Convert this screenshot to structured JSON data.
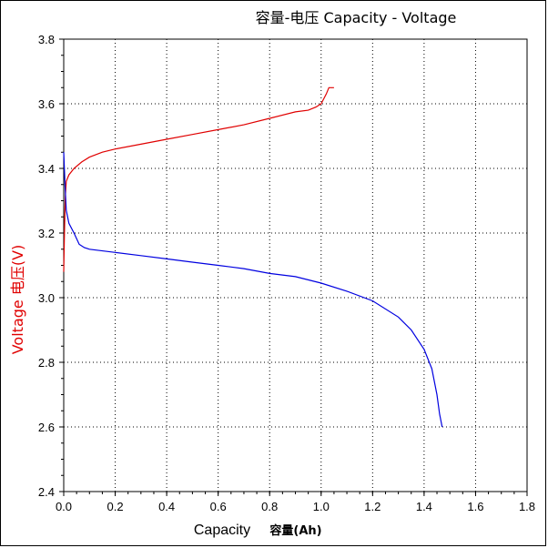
{
  "chart_data": {
    "type": "line",
    "title": "容量-电压  Capacity - Voltage",
    "xlabel": "Capacity",
    "xlabel_cn": "容量(Ah)",
    "ylabel": "Voltage  电压(V)",
    "xlim": [
      0.0,
      1.8
    ],
    "ylim": [
      2.4,
      3.8
    ],
    "xticks": [
      "0.0",
      "0.2",
      "0.4",
      "0.6",
      "0.8",
      "1.0",
      "1.2",
      "1.4",
      "1.6",
      "1.8"
    ],
    "yticks": [
      "2.4",
      "2.6",
      "2.8",
      "3.0",
      "3.2",
      "3.4",
      "3.6",
      "3.8"
    ],
    "grid": true,
    "series": [
      {
        "color": "#e00000",
        "points": [
          [
            0.0,
            3.08
          ],
          [
            0.003,
            3.2
          ],
          [
            0.006,
            3.31
          ],
          [
            0.01,
            3.36
          ],
          [
            0.02,
            3.38
          ],
          [
            0.04,
            3.4
          ],
          [
            0.07,
            3.42
          ],
          [
            0.1,
            3.435
          ],
          [
            0.15,
            3.45
          ],
          [
            0.2,
            3.46
          ],
          [
            0.3,
            3.475
          ],
          [
            0.4,
            3.49
          ],
          [
            0.5,
            3.505
          ],
          [
            0.6,
            3.52
          ],
          [
            0.7,
            3.535
          ],
          [
            0.8,
            3.555
          ],
          [
            0.9,
            3.575
          ],
          [
            0.95,
            3.58
          ],
          [
            0.98,
            3.59
          ],
          [
            1.0,
            3.6
          ],
          [
            1.02,
            3.63
          ],
          [
            1.03,
            3.65
          ],
          [
            1.05,
            3.65
          ]
        ]
      },
      {
        "color": "#0000e0",
        "points": [
          [
            0.0,
            3.45
          ],
          [
            0.005,
            3.35
          ],
          [
            0.01,
            3.27
          ],
          [
            0.02,
            3.23
          ],
          [
            0.04,
            3.2
          ],
          [
            0.06,
            3.165
          ],
          [
            0.08,
            3.155
          ],
          [
            0.1,
            3.15
          ],
          [
            0.2,
            3.14
          ],
          [
            0.3,
            3.13
          ],
          [
            0.4,
            3.12
          ],
          [
            0.5,
            3.11
          ],
          [
            0.6,
            3.1
          ],
          [
            0.7,
            3.09
          ],
          [
            0.8,
            3.075
          ],
          [
            0.9,
            3.065
          ],
          [
            1.0,
            3.045
          ],
          [
            1.1,
            3.02
          ],
          [
            1.2,
            2.99
          ],
          [
            1.3,
            2.94
          ],
          [
            1.35,
            2.9
          ],
          [
            1.4,
            2.84
          ],
          [
            1.43,
            2.78
          ],
          [
            1.45,
            2.7
          ],
          [
            1.46,
            2.64
          ],
          [
            1.47,
            2.6
          ]
        ]
      }
    ]
  }
}
